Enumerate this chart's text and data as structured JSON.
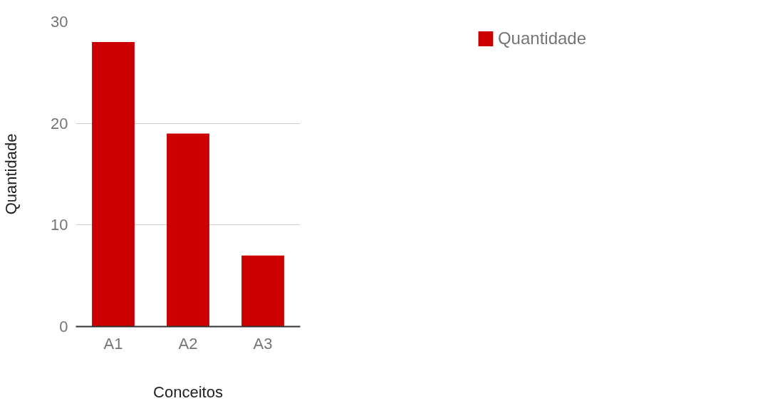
{
  "chart_data": {
    "type": "bar",
    "xlabel": "Conceitos",
    "ylabel": "Quantidade",
    "categories": [
      "A1",
      "A2",
      "A3"
    ],
    "series": [
      {
        "name": "Quantidade",
        "color": "#cc0000",
        "values": [
          28,
          19,
          7
        ]
      }
    ],
    "ylim": [
      0,
      30
    ],
    "yticks": [
      0,
      10,
      20,
      30
    ],
    "grid": "y",
    "legend": "top right"
  }
}
